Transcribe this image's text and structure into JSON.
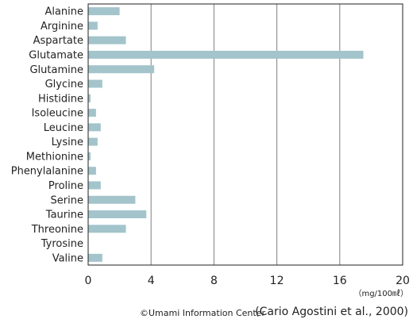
{
  "chart_data": {
    "type": "bar",
    "orientation": "horizontal",
    "categories": [
      "Alanine",
      "Arginine",
      "Aspartate",
      "Glutamate",
      "Glutamine",
      "Glycine",
      "Histidine",
      "Isoleucine",
      "Leucine",
      "Lysine",
      "Methionine",
      "Phenylalanine",
      "Proline",
      "Serine",
      "Taurine",
      "Threonine",
      "Tyrosine",
      "Valine"
    ],
    "values": [
      2.0,
      0.6,
      2.4,
      17.5,
      4.2,
      0.9,
      0.15,
      0.5,
      0.8,
      0.6,
      0.15,
      0.5,
      0.8,
      3.0,
      3.7,
      2.4,
      0.0,
      0.9
    ],
    "xlim": [
      0,
      20
    ],
    "x_ticks": [
      "0",
      "4",
      "8",
      "12",
      "16",
      "20"
    ],
    "unit_label": "（mg/100㎖）",
    "grid": "vertical",
    "colors": {
      "bar": "#a3c4cb",
      "grid": "#7f7f7f",
      "axis": "#222222"
    }
  },
  "credit": "©Umami Information Center",
  "source": "(Cario Agostini et al., 2000)"
}
